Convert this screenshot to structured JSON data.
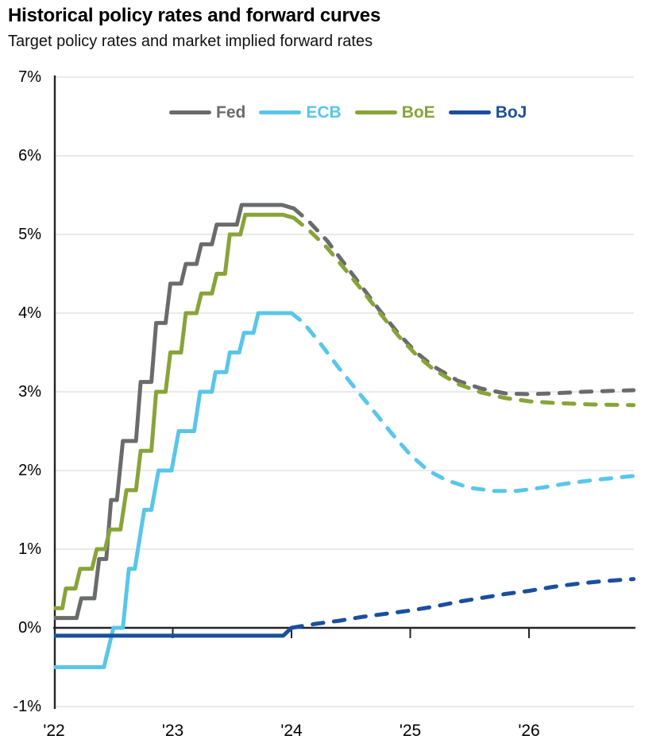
{
  "chart_data": {
    "type": "line",
    "title": "Historical policy rates and forward curves",
    "subtitle": "Target policy rates and market implied forward rates",
    "xlim": [
      2022.0,
      2026.88
    ],
    "ylim": [
      -1,
      7
    ],
    "x_ticks": [
      {
        "label": "'22",
        "year": 2022
      },
      {
        "label": "'23",
        "year": 2023
      },
      {
        "label": "'24",
        "year": 2024
      },
      {
        "label": "'25",
        "year": 2025
      },
      {
        "label": "'26",
        "year": 2026
      }
    ],
    "y_ticks": [
      {
        "label": "7%",
        "value": 7
      },
      {
        "label": "6%",
        "value": 6
      },
      {
        "label": "5%",
        "value": 5
      },
      {
        "label": "4%",
        "value": 4
      },
      {
        "label": "3%",
        "value": 3
      },
      {
        "label": "2%",
        "value": 2
      },
      {
        "label": "1%",
        "value": 1
      },
      {
        "label": "0%",
        "value": 0
      },
      {
        "label": "-1%",
        "value": -1
      }
    ],
    "grid": "horizontal-light-gray, dark zero baseline, left spine only",
    "legend_position": "top-center-inside",
    "line_styles": {
      "historical": "solid",
      "forward": "dashed"
    },
    "colors": {
      "grid": "#dedede",
      "axis": "#262324",
      "background": "#ffffff"
    },
    "series": [
      {
        "name": "Fed",
        "color": "#6a6b6d",
        "historical": [
          [
            2022.0,
            0.125
          ],
          [
            2022.19,
            0.125
          ],
          [
            2022.23,
            0.375
          ],
          [
            2022.34,
            0.375
          ],
          [
            2022.38,
            0.875
          ],
          [
            2022.44,
            0.875
          ],
          [
            2022.48,
            1.625
          ],
          [
            2022.53,
            1.625
          ],
          [
            2022.58,
            2.375
          ],
          [
            2022.69,
            2.375
          ],
          [
            2022.73,
            3.125
          ],
          [
            2022.82,
            3.125
          ],
          [
            2022.86,
            3.875
          ],
          [
            2022.94,
            3.875
          ],
          [
            2022.98,
            4.375
          ],
          [
            2023.07,
            4.375
          ],
          [
            2023.11,
            4.625
          ],
          [
            2023.2,
            4.625
          ],
          [
            2023.24,
            4.875
          ],
          [
            2023.33,
            4.875
          ],
          [
            2023.37,
            5.125
          ],
          [
            2023.54,
            5.125
          ],
          [
            2023.58,
            5.375
          ],
          [
            2023.92,
            5.375
          ],
          [
            2024.02,
            5.33
          ]
        ],
        "forward": [
          [
            2024.02,
            5.33
          ],
          [
            2024.15,
            5.16
          ],
          [
            2024.3,
            4.92
          ],
          [
            2024.45,
            4.62
          ],
          [
            2024.6,
            4.32
          ],
          [
            2024.75,
            4.02
          ],
          [
            2024.9,
            3.74
          ],
          [
            2025.05,
            3.5
          ],
          [
            2025.2,
            3.32
          ],
          [
            2025.4,
            3.14
          ],
          [
            2025.6,
            3.04
          ],
          [
            2025.8,
            2.98
          ],
          [
            2026.0,
            2.97
          ],
          [
            2026.2,
            2.98
          ],
          [
            2026.45,
            3.0
          ],
          [
            2026.88,
            3.02
          ]
        ]
      },
      {
        "name": "ECB",
        "color": "#59c6e9",
        "historical": [
          [
            2022.0,
            -0.5
          ],
          [
            2022.42,
            -0.5
          ],
          [
            2022.5,
            0.0
          ],
          [
            2022.58,
            0.0
          ],
          [
            2022.63,
            0.75
          ],
          [
            2022.68,
            0.75
          ],
          [
            2022.76,
            1.5
          ],
          [
            2022.82,
            1.5
          ],
          [
            2022.88,
            2.0
          ],
          [
            2022.99,
            2.0
          ],
          [
            2023.05,
            2.5
          ],
          [
            2023.18,
            2.5
          ],
          [
            2023.23,
            3.0
          ],
          [
            2023.33,
            3.0
          ],
          [
            2023.36,
            3.25
          ],
          [
            2023.45,
            3.25
          ],
          [
            2023.48,
            3.5
          ],
          [
            2023.56,
            3.5
          ],
          [
            2023.6,
            3.75
          ],
          [
            2023.68,
            3.75
          ],
          [
            2023.72,
            4.0
          ],
          [
            2024.0,
            4.0
          ]
        ],
        "forward": [
          [
            2024.0,
            4.0
          ],
          [
            2024.1,
            3.88
          ],
          [
            2024.25,
            3.6
          ],
          [
            2024.4,
            3.3
          ],
          [
            2024.55,
            3.02
          ],
          [
            2024.7,
            2.74
          ],
          [
            2024.85,
            2.46
          ],
          [
            2025.0,
            2.2
          ],
          [
            2025.15,
            2.0
          ],
          [
            2025.3,
            1.88
          ],
          [
            2025.5,
            1.78
          ],
          [
            2025.7,
            1.74
          ],
          [
            2025.9,
            1.74
          ],
          [
            2026.1,
            1.78
          ],
          [
            2026.3,
            1.83
          ],
          [
            2026.55,
            1.88
          ],
          [
            2026.88,
            1.93
          ]
        ]
      },
      {
        "name": "BoE",
        "color": "#88a438",
        "historical": [
          [
            2022.0,
            0.25
          ],
          [
            2022.07,
            0.25
          ],
          [
            2022.1,
            0.5
          ],
          [
            2022.18,
            0.5
          ],
          [
            2022.22,
            0.75
          ],
          [
            2022.32,
            0.75
          ],
          [
            2022.36,
            1.0
          ],
          [
            2022.43,
            1.0
          ],
          [
            2022.47,
            1.25
          ],
          [
            2022.56,
            1.25
          ],
          [
            2022.61,
            1.75
          ],
          [
            2022.69,
            1.75
          ],
          [
            2022.73,
            2.25
          ],
          [
            2022.82,
            2.25
          ],
          [
            2022.86,
            3.0
          ],
          [
            2022.94,
            3.0
          ],
          [
            2022.98,
            3.5
          ],
          [
            2023.07,
            3.5
          ],
          [
            2023.11,
            4.0
          ],
          [
            2023.2,
            4.0
          ],
          [
            2023.24,
            4.25
          ],
          [
            2023.33,
            4.25
          ],
          [
            2023.37,
            4.5
          ],
          [
            2023.44,
            4.5
          ],
          [
            2023.48,
            5.0
          ],
          [
            2023.57,
            5.0
          ],
          [
            2023.61,
            5.25
          ],
          [
            2023.93,
            5.25
          ],
          [
            2024.02,
            5.21
          ]
        ],
        "forward": [
          [
            2024.02,
            5.21
          ],
          [
            2024.15,
            5.05
          ],
          [
            2024.3,
            4.83
          ],
          [
            2024.45,
            4.56
          ],
          [
            2024.6,
            4.28
          ],
          [
            2024.75,
            3.99
          ],
          [
            2024.9,
            3.71
          ],
          [
            2025.05,
            3.47
          ],
          [
            2025.2,
            3.28
          ],
          [
            2025.4,
            3.1
          ],
          [
            2025.6,
            2.99
          ],
          [
            2025.8,
            2.92
          ],
          [
            2026.0,
            2.88
          ],
          [
            2026.2,
            2.86
          ],
          [
            2026.5,
            2.84
          ],
          [
            2026.88,
            2.83
          ]
        ]
      },
      {
        "name": "BoJ",
        "color": "#1b4f9e",
        "historical": [
          [
            2022.0,
            -0.1
          ],
          [
            2023.93,
            -0.1
          ],
          [
            2024.0,
            0.0
          ]
        ],
        "forward": [
          [
            2024.0,
            0.0
          ],
          [
            2024.2,
            0.05
          ],
          [
            2024.4,
            0.09
          ],
          [
            2024.6,
            0.14
          ],
          [
            2024.8,
            0.18
          ],
          [
            2025.0,
            0.22
          ],
          [
            2025.2,
            0.27
          ],
          [
            2025.4,
            0.33
          ],
          [
            2025.6,
            0.38
          ],
          [
            2025.8,
            0.43
          ],
          [
            2026.0,
            0.47
          ],
          [
            2026.2,
            0.52
          ],
          [
            2026.4,
            0.56
          ],
          [
            2026.6,
            0.59
          ],
          [
            2026.88,
            0.62
          ]
        ]
      }
    ]
  }
}
